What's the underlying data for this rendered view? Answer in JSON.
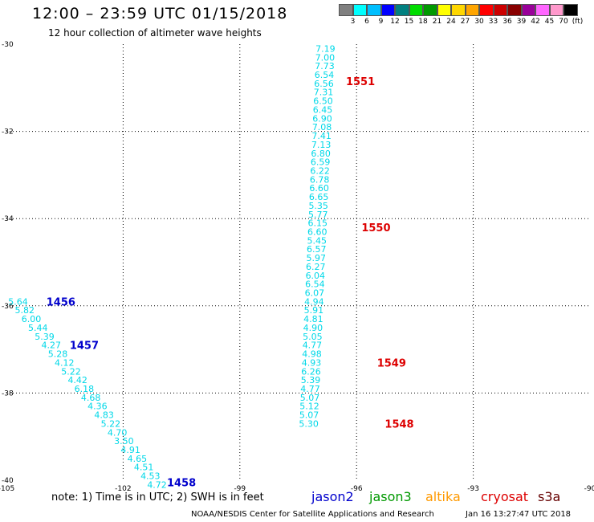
{
  "header": {
    "title": "12:00 – 23:59 UTC 01/15/2018",
    "subtitle": "12 hour collection of altimeter wave heights"
  },
  "legend": {
    "colors": [
      "#808080",
      "#00ffff",
      "#00bfff",
      "#0000ff",
      "#008080",
      "#00dd00",
      "#009900",
      "#ffff00",
      "#ffd700",
      "#ffa500",
      "#ff0000",
      "#cc0000",
      "#880000",
      "#990099",
      "#ff66ff",
      "#ff99cc",
      "#000000"
    ],
    "labels": [
      "3",
      "6",
      "9",
      "12",
      "15",
      "18",
      "21",
      "24",
      "27",
      "30",
      "33",
      "36",
      "39",
      "42",
      "45",
      "70",
      "(ft)"
    ]
  },
  "chart_data": {
    "type": "scatter",
    "x_tick_labels": [
      "-105",
      "-102",
      "-99",
      "-96",
      "-93",
      "-90"
    ],
    "y_tick_labels": [
      "-30",
      "-32",
      "-34",
      "-36",
      "-38",
      "-40"
    ],
    "xlim": [
      -105,
      -90
    ],
    "ylim": [
      -40,
      -30
    ],
    "grid": true,
    "series": [
      {
        "name": "cryosat",
        "label_color": "#00d8e8",
        "points": [
          {
            "x": -96.8,
            "y": -30.1,
            "label": "7.19"
          },
          {
            "x": -96.81,
            "y": -30.3,
            "label": "7.00"
          },
          {
            "x": -96.82,
            "y": -30.5,
            "label": "7.73"
          },
          {
            "x": -96.83,
            "y": -30.7,
            "label": "6.54"
          },
          {
            "x": -96.84,
            "y": -30.9,
            "label": "6.56"
          },
          {
            "x": -96.85,
            "y": -31.1,
            "label": "7.31"
          },
          {
            "x": -96.86,
            "y": -31.3,
            "label": "6.50"
          },
          {
            "x": -96.87,
            "y": -31.5,
            "label": "6.45"
          },
          {
            "x": -96.88,
            "y": -31.7,
            "label": "6.90"
          },
          {
            "x": -96.89,
            "y": -31.9,
            "label": "7.08"
          },
          {
            "x": -96.9,
            "y": -32.1,
            "label": "7.41"
          },
          {
            "x": -96.91,
            "y": -32.3,
            "label": "7.13"
          },
          {
            "x": -96.92,
            "y": -32.5,
            "label": "6.80"
          },
          {
            "x": -96.93,
            "y": -32.7,
            "label": "6.59"
          },
          {
            "x": -96.94,
            "y": -32.9,
            "label": "6.22"
          },
          {
            "x": -96.95,
            "y": -33.1,
            "label": "6.78"
          },
          {
            "x": -96.96,
            "y": -33.3,
            "label": "6.60"
          },
          {
            "x": -96.97,
            "y": -33.5,
            "label": "6.65"
          },
          {
            "x": -96.98,
            "y": -33.7,
            "label": "5.35"
          },
          {
            "x": -96.99,
            "y": -33.9,
            "label": "5.77"
          },
          {
            "x": -97.0,
            "y": -34.1,
            "label": "6.15"
          },
          {
            "x": -97.01,
            "y": -34.3,
            "label": "6.60"
          },
          {
            "x": -97.02,
            "y": -34.5,
            "label": "5.45"
          },
          {
            "x": -97.03,
            "y": -34.7,
            "label": "6.57"
          },
          {
            "x": -97.04,
            "y": -34.9,
            "label": "5.97"
          },
          {
            "x": -97.05,
            "y": -35.1,
            "label": "6.27"
          },
          {
            "x": -97.06,
            "y": -35.3,
            "label": "6.04"
          },
          {
            "x": -97.07,
            "y": -35.5,
            "label": "6.54"
          },
          {
            "x": -97.08,
            "y": -35.7,
            "label": "6.07"
          },
          {
            "x": -97.09,
            "y": -35.9,
            "label": "4.94"
          },
          {
            "x": -97.1,
            "y": -36.1,
            "label": "5.91"
          },
          {
            "x": -97.11,
            "y": -36.3,
            "label": "4.81"
          },
          {
            "x": -97.12,
            "y": -36.5,
            "label": "4.90"
          },
          {
            "x": -97.13,
            "y": -36.7,
            "label": "5.05"
          },
          {
            "x": -97.14,
            "y": -36.9,
            "label": "4.77"
          },
          {
            "x": -97.15,
            "y": -37.1,
            "label": "4.98"
          },
          {
            "x": -97.16,
            "y": -37.3,
            "label": "4.93"
          },
          {
            "x": -97.17,
            "y": -37.5,
            "label": "6.26"
          },
          {
            "x": -97.18,
            "y": -37.7,
            "label": "5.39"
          },
          {
            "x": -97.19,
            "y": -37.9,
            "label": "4.77"
          },
          {
            "x": -97.2,
            "y": -38.1,
            "label": "5.07"
          },
          {
            "x": -97.21,
            "y": -38.3,
            "label": "5.12"
          },
          {
            "x": -97.22,
            "y": -38.5,
            "label": "5.07"
          },
          {
            "x": -97.23,
            "y": -38.7,
            "label": "5.30"
          }
        ],
        "time_labels": [
          {
            "x": -95.9,
            "y": -30.85,
            "label": "1551"
          },
          {
            "x": -95.5,
            "y": -34.2,
            "label": "1550"
          },
          {
            "x": -95.1,
            "y": -37.3,
            "label": "1549"
          },
          {
            "x": -94.9,
            "y": -38.7,
            "label": "1548"
          }
        ]
      },
      {
        "name": "jason2",
        "label_color": "#00d8e8",
        "points": [
          {
            "x": -104.7,
            "y": -35.9,
            "label": "5.64"
          },
          {
            "x": -104.53,
            "y": -36.1,
            "label": "5.82"
          },
          {
            "x": -104.36,
            "y": -36.3,
            "label": "6.00"
          },
          {
            "x": -104.19,
            "y": -36.5,
            "label": "5.44"
          },
          {
            "x": -104.02,
            "y": -36.7,
            "label": "5.39"
          },
          {
            "x": -103.85,
            "y": -36.9,
            "label": "4.27"
          },
          {
            "x": -103.68,
            "y": -37.1,
            "label": "5.28"
          },
          {
            "x": -103.51,
            "y": -37.3,
            "label": "4.12"
          },
          {
            "x": -103.34,
            "y": -37.5,
            "label": "5.22"
          },
          {
            "x": -103.17,
            "y": -37.7,
            "label": "4.42"
          },
          {
            "x": -103.0,
            "y": -37.9,
            "label": "6.18"
          },
          {
            "x": -102.83,
            "y": -38.1,
            "label": "4.68"
          },
          {
            "x": -102.66,
            "y": -38.3,
            "label": "4.36"
          },
          {
            "x": -102.49,
            "y": -38.5,
            "label": "4.83"
          },
          {
            "x": -102.32,
            "y": -38.7,
            "label": "5.22"
          },
          {
            "x": -102.15,
            "y": -38.9,
            "label": "4.70"
          },
          {
            "x": -101.98,
            "y": -39.1,
            "label": "3.50"
          },
          {
            "x": -101.81,
            "y": -39.3,
            "label": "4.91"
          },
          {
            "x": -101.64,
            "y": -39.5,
            "label": "4.65"
          },
          {
            "x": -101.47,
            "y": -39.7,
            "label": "4.51"
          },
          {
            "x": -101.3,
            "y": -39.9,
            "label": "4.53"
          },
          {
            "x": -101.13,
            "y": -40.1,
            "label": "4.72"
          }
        ],
        "time_labels": [
          {
            "x": -103.6,
            "y": -35.9,
            "label": "1456"
          },
          {
            "x": -103.0,
            "y": -36.9,
            "label": "1457"
          },
          {
            "x": -100.5,
            "y": -40.05,
            "label": "1458"
          }
        ]
      }
    ]
  },
  "footer": {
    "note": "note:  1) Time is in UTC; 2) SWH is in feet",
    "satellites": [
      {
        "name": "jason2",
        "color": "#0000cc"
      },
      {
        "name": "jason3",
        "color": "#009900"
      },
      {
        "name": "altika",
        "color": "#ff9900"
      },
      {
        "name": "cryosat",
        "color": "#dd0000"
      },
      {
        "name": "s3a",
        "color": "#660000"
      }
    ],
    "credit": "NOAA/NESDIS Center for Satellite Applications and Research",
    "timestamp": "Jan 16 13:27:47 UTC 2018"
  }
}
